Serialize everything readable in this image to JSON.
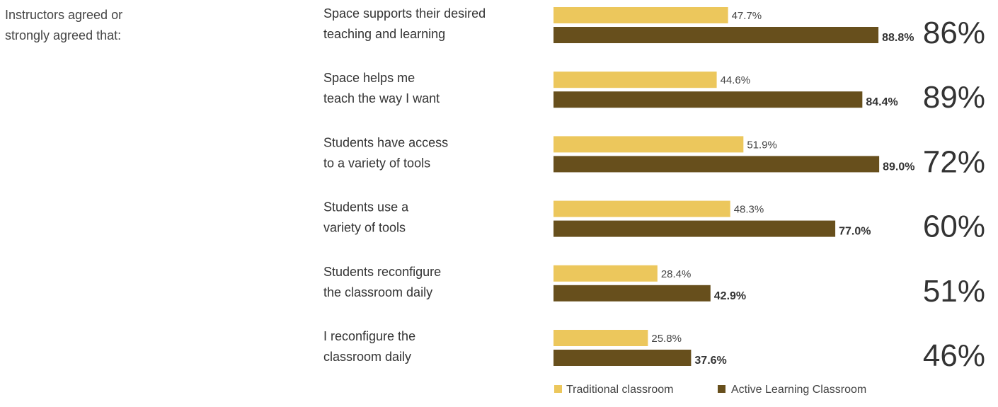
{
  "intro": {
    "line1": "Instructors agreed or",
    "line2": "strongly agreed that:"
  },
  "chart_data": {
    "type": "bar",
    "orientation": "horizontal",
    "xlim": [
      0,
      100
    ],
    "grid": false,
    "legend_position": "bottom",
    "categories": [
      [
        "Space supports their desired",
        "teaching and learning"
      ],
      [
        "Space helps me",
        "teach the way I want"
      ],
      [
        "Students have access",
        "to a variety of tools"
      ],
      [
        "Students use a",
        "variety of tools"
      ],
      [
        "Students reconfigure",
        "the classroom daily"
      ],
      [
        "I reconfigure the",
        "classroom daily"
      ]
    ],
    "series": [
      {
        "name": "Traditional classroom",
        "color": "#ecc75c",
        "values": [
          47.7,
          44.6,
          51.9,
          48.3,
          28.4,
          25.8
        ],
        "labels": [
          "47.7%",
          "44.6%",
          "51.9%",
          "48.3%",
          "28.4%",
          "25.8%"
        ]
      },
      {
        "name": "Active Learning Classroom",
        "color": "#674f1c",
        "values": [
          88.8,
          84.4,
          89.0,
          77.0,
          42.9,
          37.6
        ],
        "labels": [
          "88.8%",
          "84.4%",
          "89.0%",
          "77.0%",
          "42.9%",
          "37.6%"
        ]
      }
    ],
    "annotations": [
      "86%",
      "89%",
      "72%",
      "60%",
      "51%",
      "46%"
    ]
  }
}
